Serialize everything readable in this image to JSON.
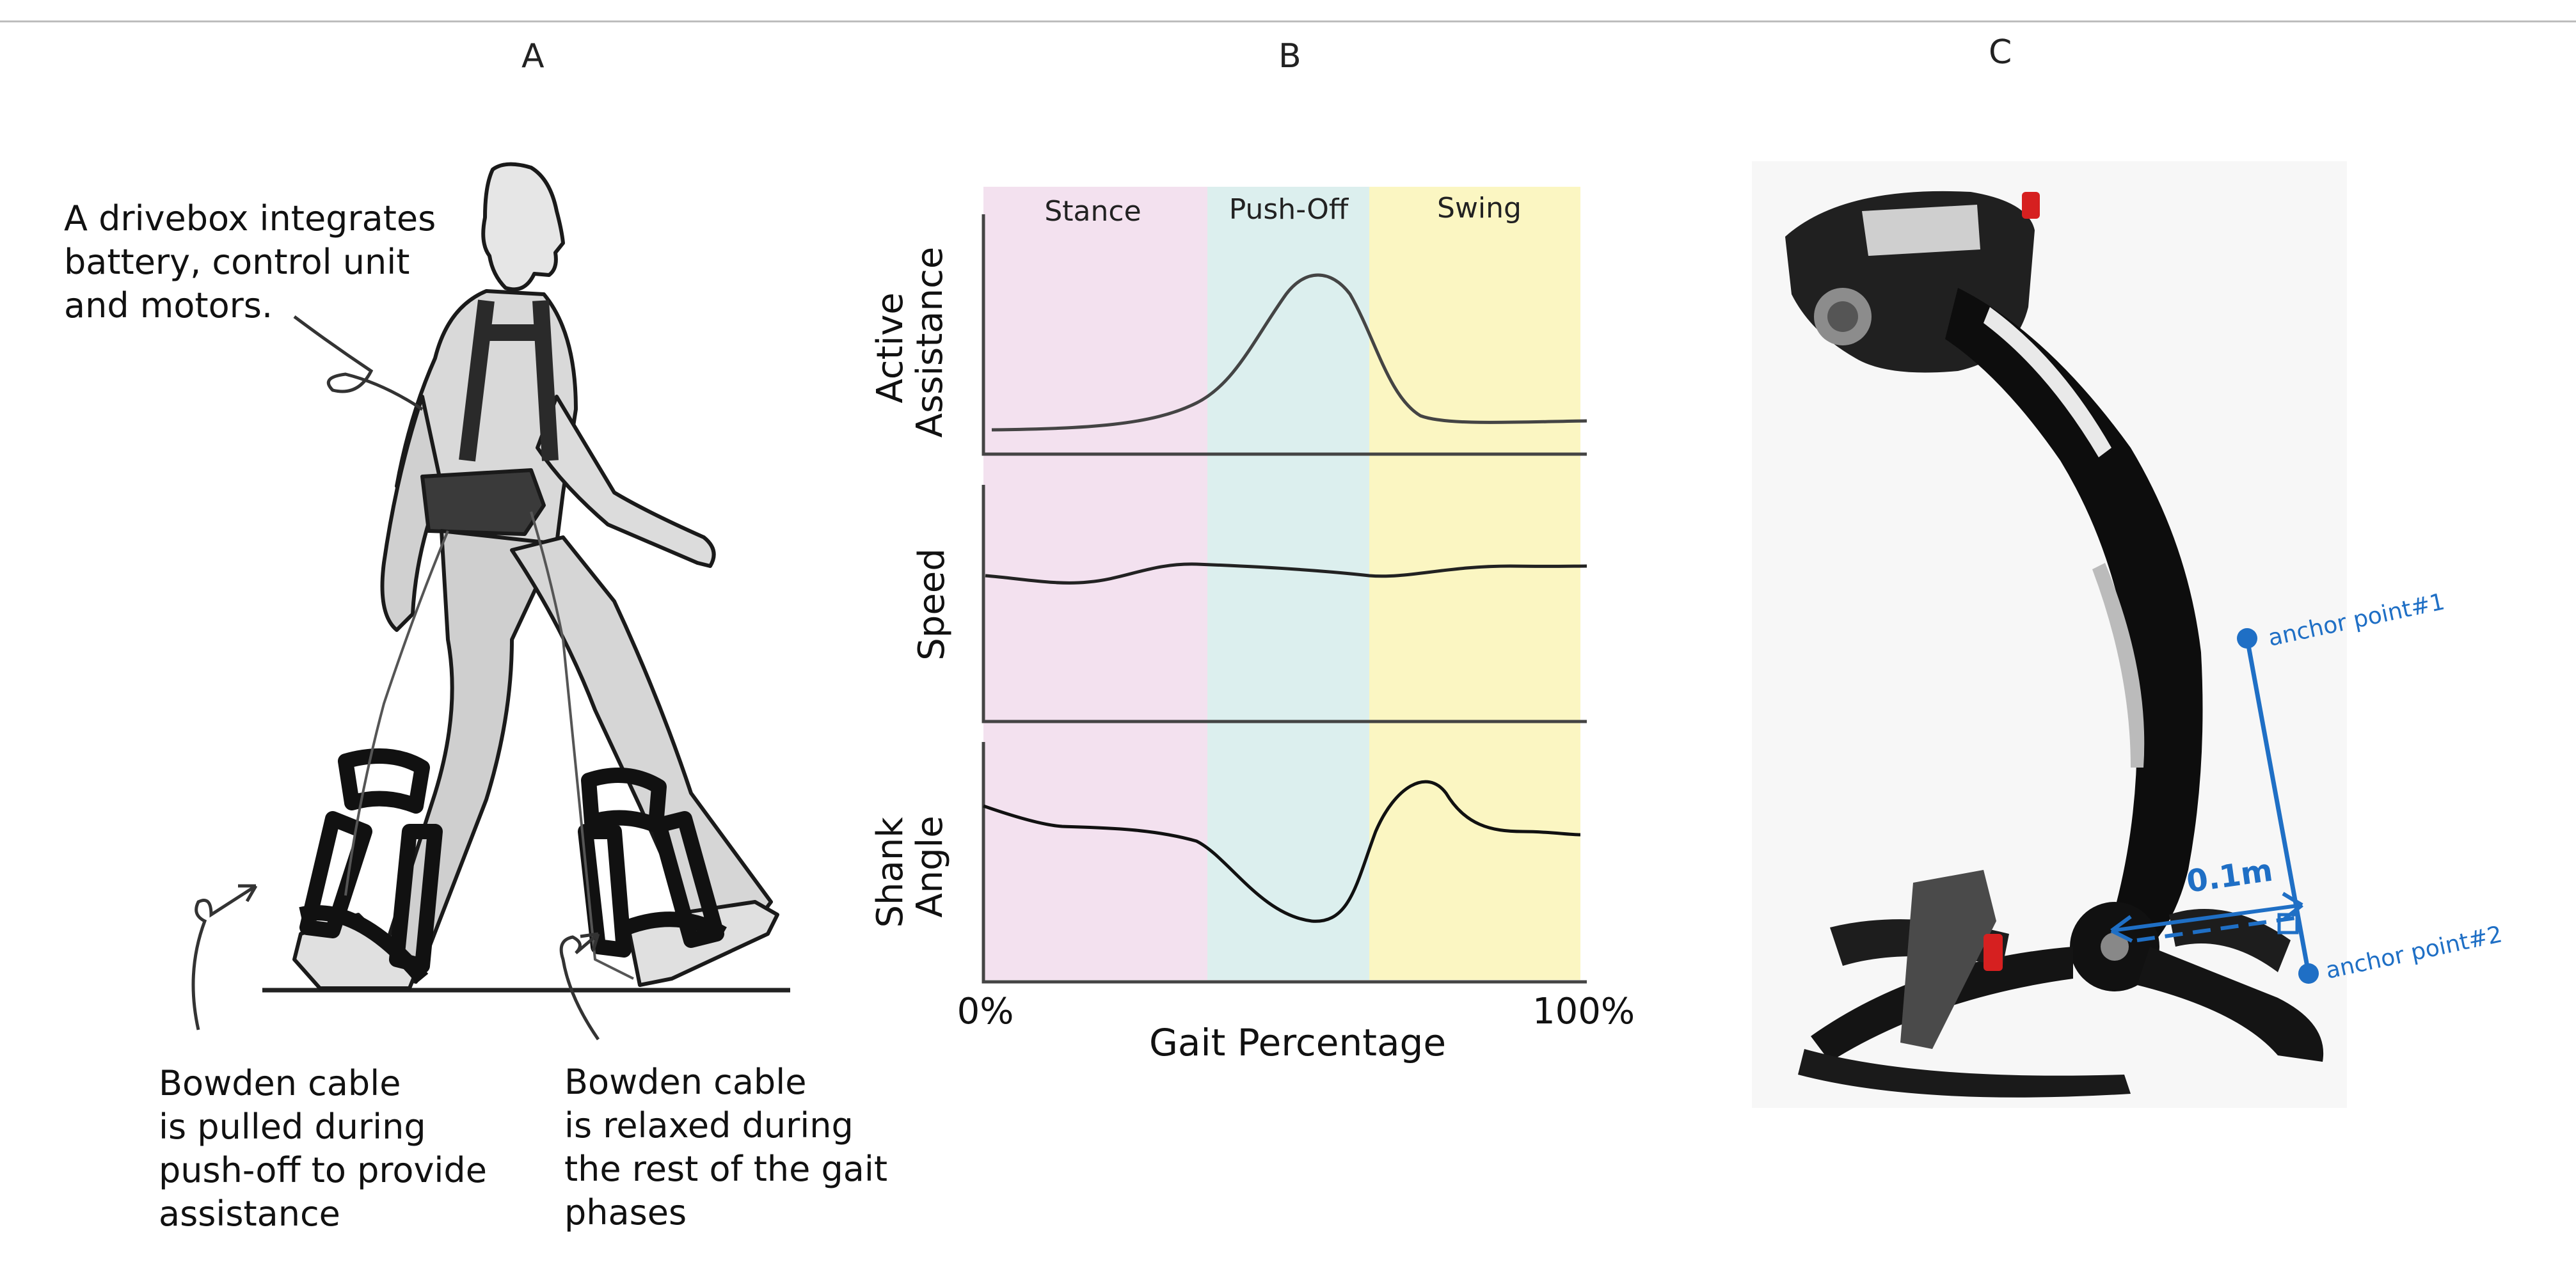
{
  "panels": {
    "a_label": "A",
    "b_label": "B",
    "c_label": "C"
  },
  "panel_a": {
    "drivebox_note": "A drivebox integrates\nbattery, control unit\nand motors.",
    "pulled_note": "Bowden cable\nis pulled during\npush-off to provide\nassistance",
    "relaxed_note": "Bowden cable\nis relaxed during\nthe rest of the gait\nphases"
  },
  "panel_b": {
    "phases": [
      "Stance",
      "Push-Off",
      "Swing"
    ],
    "phase_colors": [
      "#f3e1ef",
      "#dcefee",
      "#fbf6c2"
    ],
    "rows": [
      "Active\nAssistance",
      "Speed",
      "Shank\nAngle"
    ],
    "x_start": "0%",
    "x_end": "100%",
    "x_label": "Gait Percentage"
  },
  "panel_c": {
    "anchor1": "anchor point#1",
    "anchor2": "anchor point#2",
    "distance": "0.1m",
    "accent": "#1f6fc5"
  }
}
